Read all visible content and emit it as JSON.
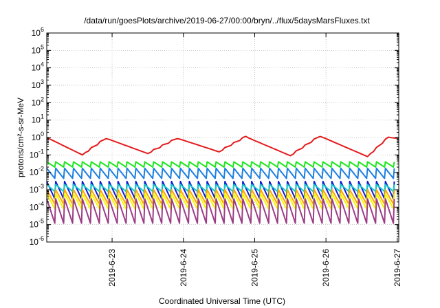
{
  "chart_data": {
    "type": "line",
    "title": "/data/run/goesPlots/archive/2019-06-27/00:00/bryn/../flux/5daysMarsFluxes.txt",
    "xlabel": "Coordinated Universal Time (UTC)",
    "ylabel": "protons/cm²-s-sr-MeV",
    "yscale": "log",
    "ylim": [
      1e-06,
      1000000.0
    ],
    "y_ticks": [
      {
        "value": -6,
        "base": "10",
        "exp": "-6"
      },
      {
        "value": -5,
        "base": "10",
        "exp": "-5"
      },
      {
        "value": -4,
        "base": "10",
        "exp": "-4"
      },
      {
        "value": -3,
        "base": "10",
        "exp": "-3"
      },
      {
        "value": -2,
        "base": "10",
        "exp": "-2"
      },
      {
        "value": -1,
        "base": "10",
        "exp": "-1"
      },
      {
        "value": 0,
        "base": "10",
        "exp": "0"
      },
      {
        "value": 1,
        "base": "10",
        "exp": "1"
      },
      {
        "value": 2,
        "base": "10",
        "exp": "2"
      },
      {
        "value": 3,
        "base": "10",
        "exp": "3"
      },
      {
        "value": 4,
        "base": "10",
        "exp": "4"
      },
      {
        "value": 5,
        "base": "10",
        "exp": "5"
      },
      {
        "value": 6,
        "base": "10",
        "exp": "6"
      }
    ],
    "xlim": [
      "2019-06-22 02:00",
      "2019-06-27 00:30"
    ],
    "x_ticks": [
      {
        "date": "2019-06-23 00:00",
        "label": "2019-6-23"
      },
      {
        "date": "2019-06-24 00:00",
        "label": "2019-6-24"
      },
      {
        "date": "2019-06-25 00:00",
        "label": "2019-6-25"
      },
      {
        "date": "2019-06-26 00:00",
        "label": "2019-6-26"
      },
      {
        "date": "2019-06-27 00:00",
        "label": "2019-6-27"
      }
    ],
    "grid": true,
    "sawtooth_period_hours": 3,
    "series": [
      {
        "color": "#e41a1c",
        "trend": "slow",
        "anchors": [
          [
            "2019-06-22 02:00",
            1.0
          ],
          [
            "2019-06-22 14:00",
            0.1
          ],
          [
            "2019-06-22 22:00",
            0.9
          ],
          [
            "2019-06-23 12:00",
            0.12
          ],
          [
            "2019-06-23 22:00",
            0.9
          ],
          [
            "2019-06-24 12:00",
            0.15
          ],
          [
            "2019-06-24 21:00",
            1.1
          ],
          [
            "2019-06-25 12:00",
            0.09
          ],
          [
            "2019-06-25 22:00",
            1.2
          ],
          [
            "2019-06-26 14:00",
            0.08
          ],
          [
            "2019-06-26 21:00",
            1.0
          ],
          [
            "2019-06-27 00:30",
            0.9
          ]
        ]
      },
      {
        "color": "#1ee61e",
        "trend": "saw",
        "peak": 0.04,
        "trough": 0.02
      },
      {
        "color": "#1b7fe0",
        "trend": "saw",
        "peak": 0.017,
        "trough": 0.0045
      },
      {
        "color": "#111dcc",
        "trend": "saw",
        "peak": 0.003,
        "trough": 0.0003
      },
      {
        "color": "#12c9c9",
        "trend": "saw",
        "peak": 0.002,
        "trough": 0.0008
      },
      {
        "color": "#ffa500",
        "trend": "saw",
        "peak": 0.001,
        "trough": 0.00015
      },
      {
        "color": "#f5f500",
        "trend": "saw",
        "peak": 0.0006,
        "trough": 8e-05
      },
      {
        "color": "#9c3c86",
        "trend": "saw",
        "peak": 0.0003,
        "trough": 1.2e-05
      }
    ]
  }
}
